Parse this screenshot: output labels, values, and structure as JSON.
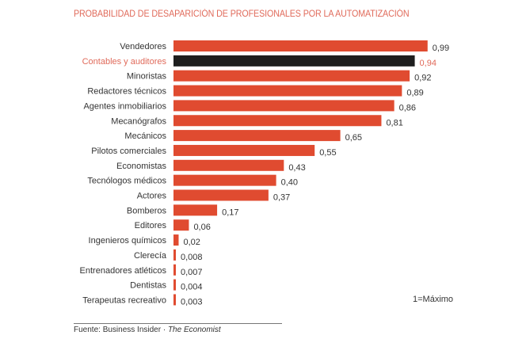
{
  "chart_data": {
    "type": "bar",
    "orientation": "horizontal",
    "title": "PROBABILIDAD DE DESAPARICIÓN DE PROFESIONALES POR LA AUTOMATIZACIÓN",
    "xlabel": "",
    "ylabel": "",
    "xlim": [
      0,
      1
    ],
    "grid": false,
    "categories": [
      "Vendedores",
      "Contables y auditores",
      "Minoristas",
      "Redactores técnicos",
      "Agentes inmobiliarios",
      "Mecanógrafos",
      "Mecánicos",
      "Pilotos comerciales",
      "Economistas",
      "Tecnólogos médicos",
      "Actores",
      "Bomberos",
      "Editores",
      "Ingenieros químicos",
      "Clerecía",
      "Entrenadores atléticos",
      "Dentistas",
      "Terapeutas recreativo"
    ],
    "values": [
      0.99,
      0.94,
      0.92,
      0.89,
      0.86,
      0.81,
      0.65,
      0.55,
      0.43,
      0.4,
      0.37,
      0.17,
      0.06,
      0.02,
      0.008,
      0.007,
      0.004,
      0.003
    ],
    "value_labels": [
      "0,99",
      "0,94",
      "0,92",
      "0,89",
      "0,86",
      "0,81",
      "0,65",
      "0,55",
      "0,43",
      "0,40",
      "0,37",
      "0,17",
      "0,06",
      "0,02",
      "0,008",
      "0,007",
      "0,004",
      "0,003"
    ],
    "highlighted_category": "Contables y auditores",
    "colors": {
      "bar": "#e04b30",
      "highlight_bar": "#1e1e1e",
      "highlight_text": "#e06a5a",
      "text": "#333333"
    },
    "annotation": "1=Máximo"
  },
  "source": {
    "prefix": "Fuente: Business Insider · ",
    "italic": "The Economist"
  }
}
